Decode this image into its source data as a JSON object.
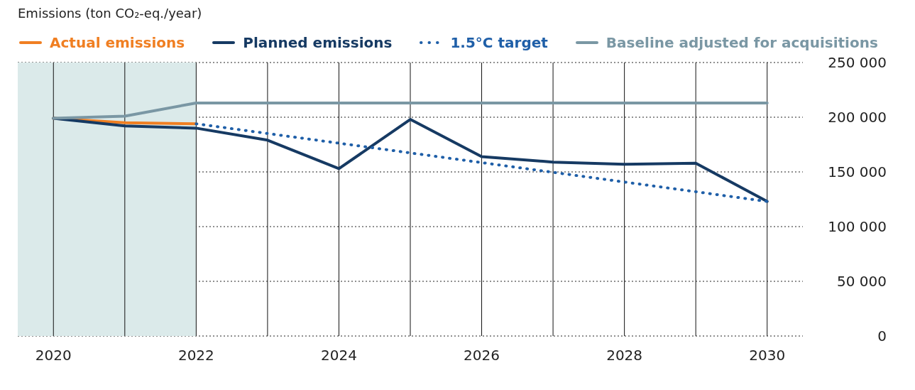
{
  "chart_data": {
    "type": "line",
    "ylabel": "Emissions (ton CO₂-eq./year)",
    "series": [
      {
        "name": "Actual emissions",
        "color": "#f07f22",
        "x": [
          2020,
          2021,
          2022
        ],
        "values": [
          199000,
          195000,
          194000
        ]
      },
      {
        "name": "Planned emissions",
        "color": "#163a63",
        "x": [
          2020,
          2021,
          2022,
          2023,
          2024,
          2025,
          2026,
          2027,
          2028,
          2029,
          2030
        ],
        "values": [
          199000,
          192000,
          190000,
          179000,
          153000,
          198000,
          164000,
          159000,
          157000,
          158000,
          123000
        ]
      },
      {
        "name": "1.5°C target",
        "color": "#1f5fa8",
        "line_style": "dotted",
        "x": [
          2022,
          2030
        ],
        "values": [
          194000,
          123000
        ]
      },
      {
        "name": "Baseline adjusted for acquisitions",
        "color": "#7a97a4",
        "x": [
          2020,
          2021,
          2022,
          2023,
          2024,
          2025,
          2026,
          2027,
          2028,
          2029,
          2030
        ],
        "values": [
          199000,
          201000,
          213000,
          213000,
          213000,
          213000,
          213000,
          213000,
          213000,
          213000,
          213000
        ]
      }
    ],
    "xlim": [
      2019.5,
      2030.5
    ],
    "xticks": [
      2020,
      {
        "value": 2021,
        "label": null
      },
      2022,
      {
        "value": 2023,
        "label": null
      },
      2024,
      {
        "value": 2025,
        "label": null
      },
      2026,
      {
        "value": 2027,
        "label": null
      },
      2028,
      {
        "value": 2029,
        "label": null
      },
      2030
    ],
    "ylim": [
      0,
      250000
    ],
    "yticks": [
      {
        "value": 0,
        "label": "0"
      },
      {
        "value": 50000,
        "label": "50 000"
      },
      {
        "value": 100000,
        "label": "100 000"
      },
      {
        "value": 150000,
        "label": "150 000"
      },
      {
        "value": 200000,
        "label": "200 000"
      },
      {
        "value": 250000,
        "label": "250 000"
      }
    ],
    "bands": [
      {
        "axis": "x",
        "from": 2019.5,
        "to": 2022,
        "color": "#dbeaea"
      }
    ],
    "grid": true,
    "legend": "top left",
    "marker": "none",
    "line_style": "solid"
  }
}
